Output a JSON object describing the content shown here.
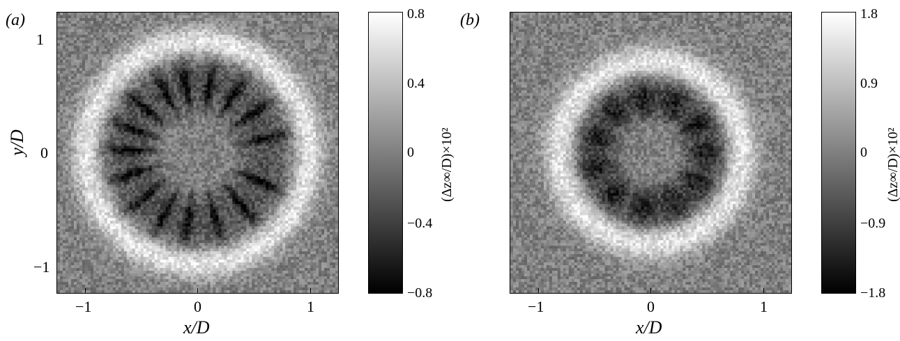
{
  "chart_data": [
    {
      "type": "heatmap",
      "panel_label": "(a)",
      "title": "",
      "xlabel": "x/D",
      "ylabel": "y/D",
      "xlim": [
        -1.25,
        1.25
      ],
      "ylim": [
        -1.25,
        1.25
      ],
      "xticks": [
        -1,
        0,
        1
      ],
      "xtick_labels": [
        "−1",
        "0",
        "1"
      ],
      "yticks": [
        -1,
        0,
        1
      ],
      "ytick_labels": [
        "−1",
        "0",
        "1"
      ],
      "colorbar": {
        "label": "(Δz∞/D)×10²",
        "range": [
          -0.8,
          0.8
        ],
        "ticks": [
          0.8,
          0.4,
          0,
          -0.4,
          -0.8
        ],
        "tick_labels": [
          "0.8",
          "0.4",
          "0",
          "−0.4",
          "−0.8"
        ],
        "colormap": "gray"
      },
      "pattern": {
        "ring_radius": 1.0,
        "ring_width": 0.13,
        "dark_zone_inner": 0.3,
        "dark_zone_outer": 0.9,
        "streak_count": 16,
        "streak_angles_deg": [
          12,
          35,
          58,
          80,
          100,
          118,
          140,
          160,
          178,
          198,
          220,
          242,
          262,
          285,
          310,
          335
        ]
      }
    },
    {
      "type": "heatmap",
      "panel_label": "(b)",
      "title": "",
      "xlabel": "x/D",
      "ylabel": "",
      "xlim": [
        -1.25,
        1.25
      ],
      "ylim": [
        -1.25,
        1.25
      ],
      "xticks": [
        -1,
        0,
        1
      ],
      "xtick_labels": [
        "−1",
        "0",
        "1"
      ],
      "yticks": [],
      "ytick_labels": [],
      "colorbar": {
        "label": "(Δz∞/D)×10²",
        "range": [
          -1.8,
          1.8
        ],
        "ticks": [
          1.8,
          0.9,
          0,
          -0.9,
          -1.8
        ],
        "tick_labels": [
          "1.8",
          "0.9",
          "0",
          "−0.9",
          "−1.8"
        ],
        "colormap": "gray"
      },
      "pattern": {
        "ring_radius": 0.82,
        "ring_width": 0.14,
        "dark_zone_inner": 0.25,
        "dark_zone_outer": 0.72,
        "lobe_count": 11
      }
    }
  ]
}
